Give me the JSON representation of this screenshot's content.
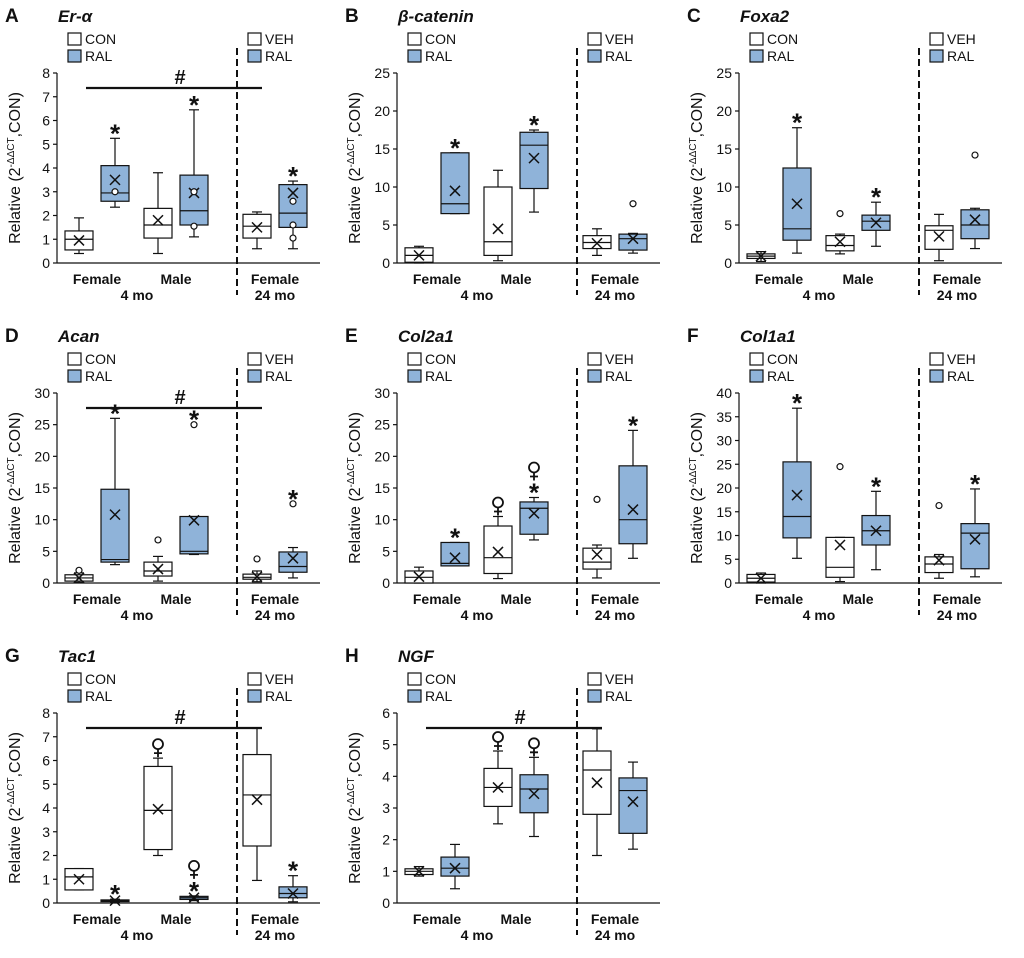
{
  "chart_data": [
    {
      "type": "box",
      "panel_letter": "A",
      "gene": "Er-α",
      "ylabel_main": "Relative (2",
      "ylabel_sup": "-ΔΔCT",
      "ylabel_tail": ",CON)",
      "ylim": [
        0,
        8
      ],
      "yticks": [
        0,
        1,
        2,
        3,
        4,
        5,
        6,
        7,
        8
      ],
      "legend_left": [
        "CON",
        "RAL"
      ],
      "legend_right": [
        "VEH",
        "RAL"
      ],
      "categories": [
        "Female",
        "Male",
        "Female"
      ],
      "group_labels": [
        "4 mo",
        "24 mo"
      ],
      "hash_label": "#",
      "hash_span": [
        0,
        2
      ],
      "boxes": [
        {
          "cat": 0,
          "series": "CON",
          "min": 0.4,
          "q1": 0.55,
          "median": 1.0,
          "q3": 1.35,
          "max": 1.9,
          "mean": 0.95,
          "outliers": []
        },
        {
          "cat": 0,
          "series": "RAL",
          "min": 2.35,
          "q1": 2.6,
          "median": 2.95,
          "q3": 4.1,
          "max": 5.25,
          "mean": 3.5,
          "outliers": [
            3.0
          ],
          "mark": "*"
        },
        {
          "cat": 1,
          "series": "CON",
          "min": 0.4,
          "q1": 1.05,
          "median": 1.6,
          "q3": 2.3,
          "max": 3.8,
          "mean": 1.8,
          "outliers": []
        },
        {
          "cat": 1,
          "series": "RAL",
          "min": 1.1,
          "q1": 1.6,
          "median": 2.2,
          "q3": 3.7,
          "max": 6.45,
          "mean": 2.95,
          "outliers": [
            3.0,
            1.55
          ],
          "mark": "*"
        },
        {
          "cat": 2,
          "series": "VEH",
          "min": 0.6,
          "q1": 1.05,
          "median": 1.55,
          "q3": 2.05,
          "max": 2.15,
          "mean": 1.5,
          "outliers": []
        },
        {
          "cat": 2,
          "series": "RAL",
          "min": 0.6,
          "q1": 1.5,
          "median": 2.1,
          "q3": 3.3,
          "max": 3.45,
          "mean": 2.95,
          "outliers": [
            2.6,
            1.05,
            1.6
          ],
          "mark": "*"
        }
      ]
    },
    {
      "type": "box",
      "panel_letter": "B",
      "gene": "β-catenin",
      "ylabel_main": "Relative (2",
      "ylabel_sup": "-ΔΔCT",
      "ylabel_tail": ",CON)",
      "ylim": [
        0,
        25
      ],
      "yticks": [
        0,
        5,
        10,
        15,
        20,
        25
      ],
      "legend_left": [
        "CON",
        "RAL"
      ],
      "legend_right": [
        "VEH",
        "RAL"
      ],
      "categories": [
        "Female",
        "Male",
        "Female"
      ],
      "group_labels": [
        "4 mo",
        "24 mo"
      ],
      "boxes": [
        {
          "cat": 0,
          "series": "CON",
          "min": 0.0,
          "q1": 0.1,
          "median": 1.0,
          "q3": 2.0,
          "max": 2.2,
          "mean": 1.0,
          "outliers": []
        },
        {
          "cat": 0,
          "series": "RAL",
          "min": 6.5,
          "q1": 6.5,
          "median": 7.8,
          "q3": 14.5,
          "max": 14.5,
          "mean": 9.5,
          "outliers": [],
          "mark": "*"
        },
        {
          "cat": 1,
          "series": "CON",
          "min": 0.3,
          "q1": 1.0,
          "median": 2.8,
          "q3": 10.0,
          "max": 12.2,
          "mean": 4.5,
          "outliers": []
        },
        {
          "cat": 1,
          "series": "RAL",
          "min": 6.7,
          "q1": 9.8,
          "median": 15.5,
          "q3": 17.2,
          "max": 17.5,
          "mean": 13.8,
          "outliers": [],
          "mark": "*"
        },
        {
          "cat": 2,
          "series": "VEH",
          "min": 1.0,
          "q1": 1.9,
          "median": 2.7,
          "q3": 3.6,
          "max": 4.5,
          "mean": 2.6,
          "outliers": []
        },
        {
          "cat": 2,
          "series": "RAL",
          "min": 1.3,
          "q1": 1.7,
          "median": 3.2,
          "q3": 3.8,
          "max": 3.9,
          "mean": 3.2,
          "outliers": [
            7.8
          ]
        }
      ]
    },
    {
      "type": "box",
      "panel_letter": "C",
      "gene": "Foxa2",
      "ylabel_main": "Relative (2",
      "ylabel_sup": "-ΔΔCT",
      "ylabel_tail": ",CON)",
      "ylim": [
        0,
        25
      ],
      "yticks": [
        0,
        5,
        10,
        15,
        20,
        25
      ],
      "legend_left": [
        "CON",
        "RAL"
      ],
      "legend_right": [
        "VEH",
        "RAL"
      ],
      "categories": [
        "Female",
        "Male",
        "Female"
      ],
      "group_labels": [
        "4 mo",
        "24 mo"
      ],
      "boxes": [
        {
          "cat": 0,
          "series": "CON",
          "min": 0.2,
          "q1": 0.6,
          "median": 0.9,
          "q3": 1.2,
          "max": 1.5,
          "mean": 0.9,
          "outliers": []
        },
        {
          "cat": 0,
          "series": "RAL",
          "min": 1.3,
          "q1": 3.0,
          "median": 4.5,
          "q3": 12.5,
          "max": 17.8,
          "mean": 7.8,
          "outliers": [],
          "mark": "*"
        },
        {
          "cat": 1,
          "series": "CON",
          "min": 1.2,
          "q1": 1.6,
          "median": 2.3,
          "q3": 3.6,
          "max": 3.8,
          "mean": 2.8,
          "outliers": [
            6.5
          ]
        },
        {
          "cat": 1,
          "series": "RAL",
          "min": 2.2,
          "q1": 4.3,
          "median": 5.5,
          "q3": 6.3,
          "max": 8.0,
          "mean": 5.3,
          "outliers": [],
          "mark": "*"
        },
        {
          "cat": 2,
          "series": "VEH",
          "min": 0.3,
          "q1": 1.8,
          "median": 4.3,
          "q3": 4.9,
          "max": 6.4,
          "mean": 3.5,
          "outliers": []
        },
        {
          "cat": 2,
          "series": "RAL",
          "min": 1.9,
          "q1": 3.2,
          "median": 5.0,
          "q3": 7.0,
          "max": 7.2,
          "mean": 5.7,
          "outliers": [
            14.2
          ]
        }
      ]
    },
    {
      "type": "box",
      "panel_letter": "D",
      "gene": "Acan",
      "ylabel_main": "Relative (2",
      "ylabel_sup": "-ΔΔCT",
      "ylabel_tail": ",CON)",
      "ylim": [
        0,
        30
      ],
      "yticks": [
        0,
        5,
        10,
        15,
        20,
        25,
        30
      ],
      "legend_left": [
        "CON",
        "RAL"
      ],
      "legend_right": [
        "VEH",
        "RAL"
      ],
      "categories": [
        "Female",
        "Male",
        "Female"
      ],
      "group_labels": [
        "4 mo",
        "24 mo"
      ],
      "hash_label": "#",
      "hash_span": [
        0,
        2
      ],
      "boxes": [
        {
          "cat": 0,
          "series": "CON",
          "min": 0.1,
          "q1": 0.3,
          "median": 0.8,
          "q3": 1.3,
          "max": 1.6,
          "mean": 0.8,
          "outliers": [
            2.0
          ]
        },
        {
          "cat": 0,
          "series": "RAL",
          "min": 2.9,
          "q1": 3.3,
          "median": 3.7,
          "q3": 14.8,
          "max": 26.0,
          "mean": 10.8,
          "outliers": [],
          "mark": "*"
        },
        {
          "cat": 1,
          "series": "CON",
          "min": 0.3,
          "q1": 1.1,
          "median": 1.9,
          "q3": 3.3,
          "max": 4.2,
          "mean": 2.2,
          "outliers": [
            6.8
          ]
        },
        {
          "cat": 1,
          "series": "RAL",
          "min": 4.5,
          "q1": 4.6,
          "median": 5.0,
          "q3": 10.5,
          "max": 10.5,
          "mean": 9.9,
          "outliers": [
            25.0
          ],
          "mark": "*"
        },
        {
          "cat": 2,
          "series": "VEH",
          "min": 0.2,
          "q1": 0.6,
          "median": 0.9,
          "q3": 1.4,
          "max": 1.9,
          "mean": 1.0,
          "outliers": [
            3.8
          ]
        },
        {
          "cat": 2,
          "series": "RAL",
          "min": 0.8,
          "q1": 1.7,
          "median": 2.6,
          "q3": 4.9,
          "max": 5.6,
          "mean": 3.9,
          "outliers": [
            12.5
          ],
          "mark": "*"
        }
      ]
    },
    {
      "type": "box",
      "panel_letter": "E",
      "gene": "Col2a1",
      "ylabel_main": "Relative (2",
      "ylabel_sup": "-ΔΔCT",
      "ylabel_tail": ",CON)",
      "ylim": [
        0,
        30
      ],
      "yticks": [
        0,
        5,
        10,
        15,
        20,
        25,
        30
      ],
      "legend_left": [
        "CON",
        "RAL"
      ],
      "legend_right": [
        "VEH",
        "RAL"
      ],
      "categories": [
        "Female",
        "Male",
        "Female"
      ],
      "group_labels": [
        "4 mo",
        "24 mo"
      ],
      "boxes": [
        {
          "cat": 0,
          "series": "CON",
          "min": 0.0,
          "q1": 0.0,
          "median": 0.9,
          "q3": 1.9,
          "max": 2.5,
          "mean": 1.0,
          "outliers": []
        },
        {
          "cat": 0,
          "series": "RAL",
          "min": 2.7,
          "q1": 2.7,
          "median": 3.1,
          "q3": 6.4,
          "max": 6.4,
          "mean": 4.0,
          "outliers": [],
          "mark": "*"
        },
        {
          "cat": 1,
          "series": "CON",
          "min": 0.7,
          "q1": 1.5,
          "median": 4.0,
          "q3": 9.0,
          "max": 10.5,
          "mean": 4.9,
          "outliers": [],
          "female_sign": true
        },
        {
          "cat": 1,
          "series": "RAL",
          "min": 6.8,
          "q1": 7.7,
          "median": 11.8,
          "q3": 12.8,
          "max": 13.5,
          "mean": 11.0,
          "outliers": [],
          "mark": "*",
          "female_sign": true
        },
        {
          "cat": 2,
          "series": "VEH",
          "min": 0.8,
          "q1": 2.2,
          "median": 3.3,
          "q3": 5.5,
          "max": 6.0,
          "mean": 4.5,
          "outliers": [
            13.2
          ]
        },
        {
          "cat": 2,
          "series": "RAL",
          "min": 3.9,
          "q1": 6.2,
          "median": 10.0,
          "q3": 18.5,
          "max": 24.1,
          "mean": 11.6,
          "outliers": [],
          "mark": "*"
        }
      ]
    },
    {
      "type": "box",
      "panel_letter": "F",
      "gene": "Col1a1",
      "ylabel_main": "Relative (2",
      "ylabel_sup": "-ΔΔCT",
      "ylabel_tail": ",CON)",
      "ylim": [
        0,
        40
      ],
      "yticks": [
        0,
        5,
        10,
        15,
        20,
        25,
        30,
        35,
        40
      ],
      "legend_left": [
        "CON",
        "RAL"
      ],
      "legend_right": [
        "VEH",
        "RAL"
      ],
      "categories": [
        "Female",
        "Male",
        "Female"
      ],
      "group_labels": [
        "4 mo",
        "24 mo"
      ],
      "boxes": [
        {
          "cat": 0,
          "series": "CON",
          "min": 0.0,
          "q1": 0.2,
          "median": 1.0,
          "q3": 1.8,
          "max": 2.1,
          "mean": 1.0,
          "outliers": []
        },
        {
          "cat": 0,
          "series": "RAL",
          "min": 5.2,
          "q1": 9.5,
          "median": 14.0,
          "q3": 25.5,
          "max": 36.8,
          "mean": 18.5,
          "outliers": [],
          "mark": "*"
        },
        {
          "cat": 1,
          "series": "CON",
          "min": 0.3,
          "q1": 1.2,
          "median": 3.3,
          "q3": 9.6,
          "max": 9.6,
          "mean": 8.0,
          "outliers": [
            24.5
          ]
        },
        {
          "cat": 1,
          "series": "RAL",
          "min": 2.8,
          "q1": 8.0,
          "median": 11.0,
          "q3": 14.2,
          "max": 19.3,
          "mean": 11.0,
          "outliers": [],
          "mark": "*"
        },
        {
          "cat": 2,
          "series": "VEH",
          "min": 1.0,
          "q1": 2.2,
          "median": 4.0,
          "q3": 5.5,
          "max": 6.0,
          "mean": 4.8,
          "outliers": [
            16.3
          ]
        },
        {
          "cat": 2,
          "series": "RAL",
          "min": 1.3,
          "q1": 3.0,
          "median": 10.5,
          "q3": 12.5,
          "max": 19.8,
          "mean": 9.2,
          "outliers": [],
          "mark": "*"
        }
      ]
    },
    {
      "type": "box",
      "panel_letter": "G",
      "gene": "Tac1",
      "ylabel_main": "Relative (2",
      "ylabel_sup": "-ΔΔCT",
      "ylabel_tail": ",CON)",
      "ylim": [
        0,
        8
      ],
      "yticks": [
        0,
        1,
        2,
        3,
        4,
        5,
        6,
        7,
        8
      ],
      "legend_left": [
        "CON",
        "RAL"
      ],
      "legend_right": [
        "VEH",
        "RAL"
      ],
      "categories": [
        "Female",
        "Male",
        "Female"
      ],
      "group_labels": [
        "4 mo",
        "24 mo"
      ],
      "hash_label": "#",
      "hash_span": [
        0,
        2
      ],
      "boxes": [
        {
          "cat": 0,
          "series": "CON",
          "min": 0.55,
          "q1": 0.55,
          "median": 1.1,
          "q3": 1.45,
          "max": 1.45,
          "mean": 1.0,
          "outliers": []
        },
        {
          "cat": 0,
          "series": "RAL",
          "min": 0.03,
          "q1": 0.06,
          "median": 0.1,
          "q3": 0.13,
          "max": 0.16,
          "mean": 0.1,
          "outliers": [],
          "mark": "*"
        },
        {
          "cat": 1,
          "series": "CON",
          "min": 2.0,
          "q1": 2.25,
          "median": 3.9,
          "q3": 5.75,
          "max": 6.1,
          "mean": 3.95,
          "outliers": [],
          "female_sign": true
        },
        {
          "cat": 1,
          "series": "RAL",
          "min": 0.1,
          "q1": 0.15,
          "median": 0.22,
          "q3": 0.28,
          "max": 0.3,
          "mean": 0.22,
          "outliers": [],
          "mark": "*",
          "female_sign": true
        },
        {
          "cat": 2,
          "series": "VEH",
          "min": 0.95,
          "q1": 2.4,
          "median": 4.55,
          "q3": 6.25,
          "max": 7.35,
          "mean": 4.35,
          "outliers": []
        },
        {
          "cat": 2,
          "series": "RAL",
          "min": 0.05,
          "q1": 0.22,
          "median": 0.4,
          "q3": 0.68,
          "max": 1.15,
          "mean": 0.4,
          "outliers": [],
          "mark": "*"
        }
      ]
    },
    {
      "type": "box",
      "panel_letter": "H",
      "gene": "NGF",
      "ylabel_main": "Relative (2",
      "ylabel_sup": "-ΔΔCT",
      "ylabel_tail": ",CON)",
      "ylim": [
        0,
        6
      ],
      "yticks": [
        0,
        1,
        2,
        3,
        4,
        5,
        6
      ],
      "legend_left": [
        "CON",
        "RAL"
      ],
      "legend_right": [
        "VEH",
        "RAL"
      ],
      "categories": [
        "Female",
        "Male",
        "Female"
      ],
      "group_labels": [
        "4 mo",
        "24 mo"
      ],
      "hash_label": "#",
      "hash_span": [
        0,
        2
      ],
      "boxes": [
        {
          "cat": 0,
          "series": "CON",
          "min": 0.85,
          "q1": 0.9,
          "median": 1.0,
          "q3": 1.08,
          "max": 1.15,
          "mean": 1.0,
          "outliers": []
        },
        {
          "cat": 0,
          "series": "RAL",
          "min": 0.45,
          "q1": 0.85,
          "median": 1.1,
          "q3": 1.45,
          "max": 1.85,
          "mean": 1.1,
          "outliers": []
        },
        {
          "cat": 1,
          "series": "CON",
          "min": 2.5,
          "q1": 3.05,
          "median": 3.65,
          "q3": 4.25,
          "max": 4.8,
          "mean": 3.65,
          "outliers": [],
          "female_sign": true
        },
        {
          "cat": 1,
          "series": "RAL",
          "min": 2.1,
          "q1": 2.85,
          "median": 3.6,
          "q3": 4.05,
          "max": 4.6,
          "mean": 3.45,
          "outliers": [],
          "female_sign": true
        },
        {
          "cat": 2,
          "series": "VEH",
          "min": 1.5,
          "q1": 2.8,
          "median": 4.2,
          "q3": 4.8,
          "max": 5.5,
          "mean": 3.8,
          "outliers": []
        },
        {
          "cat": 2,
          "series": "RAL",
          "min": 1.7,
          "q1": 2.2,
          "median": 3.55,
          "q3": 3.95,
          "max": 4.45,
          "mean": 3.2,
          "outliers": []
        }
      ]
    }
  ],
  "colors": {
    "ral_fill": "#8fb3d9",
    "con_fill": "#ffffff",
    "stroke": "#111111"
  }
}
